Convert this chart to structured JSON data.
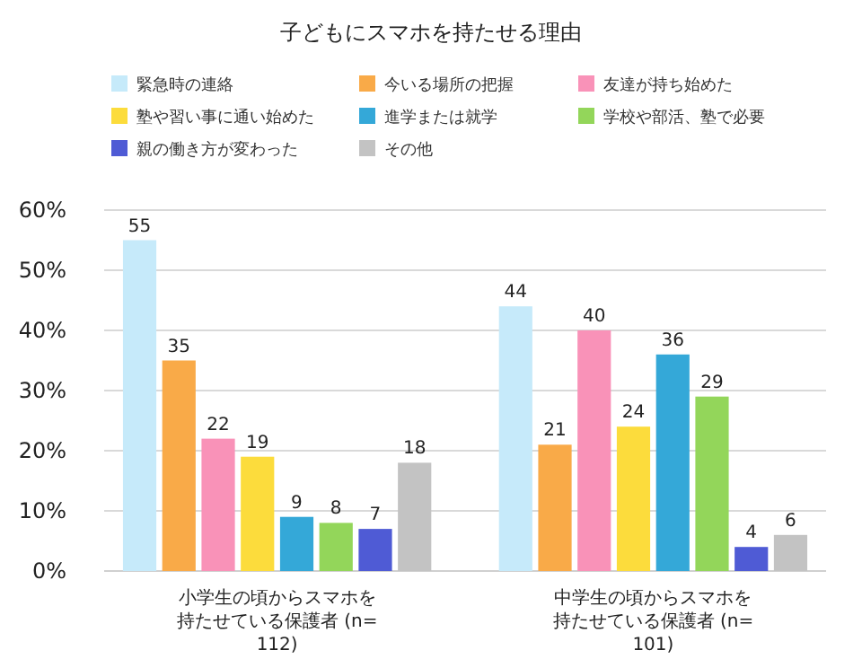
{
  "chart_data": {
    "type": "bar",
    "title": "子どもにスマホを持たせる理由",
    "categories": [
      "小学生の頃からスマホを持たせている保護者 (n=112)",
      "中学生の頃からスマホを持たせている保護者 (n=101)"
    ],
    "series": [
      {
        "name": "緊急時の連絡",
        "color": "#c6eafa",
        "values": [
          55,
          44
        ]
      },
      {
        "name": "今いる場所の把握",
        "color": "#f9aa48",
        "values": [
          35,
          21
        ]
      },
      {
        "name": "友達が持ち始めた",
        "color": "#f992b8",
        "values": [
          22,
          40
        ]
      },
      {
        "name": "塾や習い事に通い始めた",
        "color": "#fcdc3c",
        "values": [
          19,
          24
        ]
      },
      {
        "name": "進学または就学",
        "color": "#34a8d8",
        "values": [
          9,
          36
        ]
      },
      {
        "name": "学校や部活、塾で必要",
        "color": "#93d65a",
        "values": [
          8,
          29
        ]
      },
      {
        "name": "親の働き方が変わった",
        "color": "#4f5bd5",
        "values": [
          7,
          4
        ]
      },
      {
        "name": "その他",
        "color": "#c3c3c3",
        "values": [
          18,
          6
        ]
      }
    ],
    "ylim": [
      0,
      60
    ],
    "yticks": [
      {
        "value": 0,
        "label": "0%"
      },
      {
        "value": 10,
        "label": "10%"
      },
      {
        "value": 20,
        "label": "20%"
      },
      {
        "value": 30,
        "label": "30%"
      },
      {
        "value": 40,
        "label": "40%"
      },
      {
        "value": 50,
        "label": "50%"
      },
      {
        "value": 60,
        "label": "60%"
      }
    ],
    "grid": "y",
    "legend": "top",
    "data_labels": true
  }
}
